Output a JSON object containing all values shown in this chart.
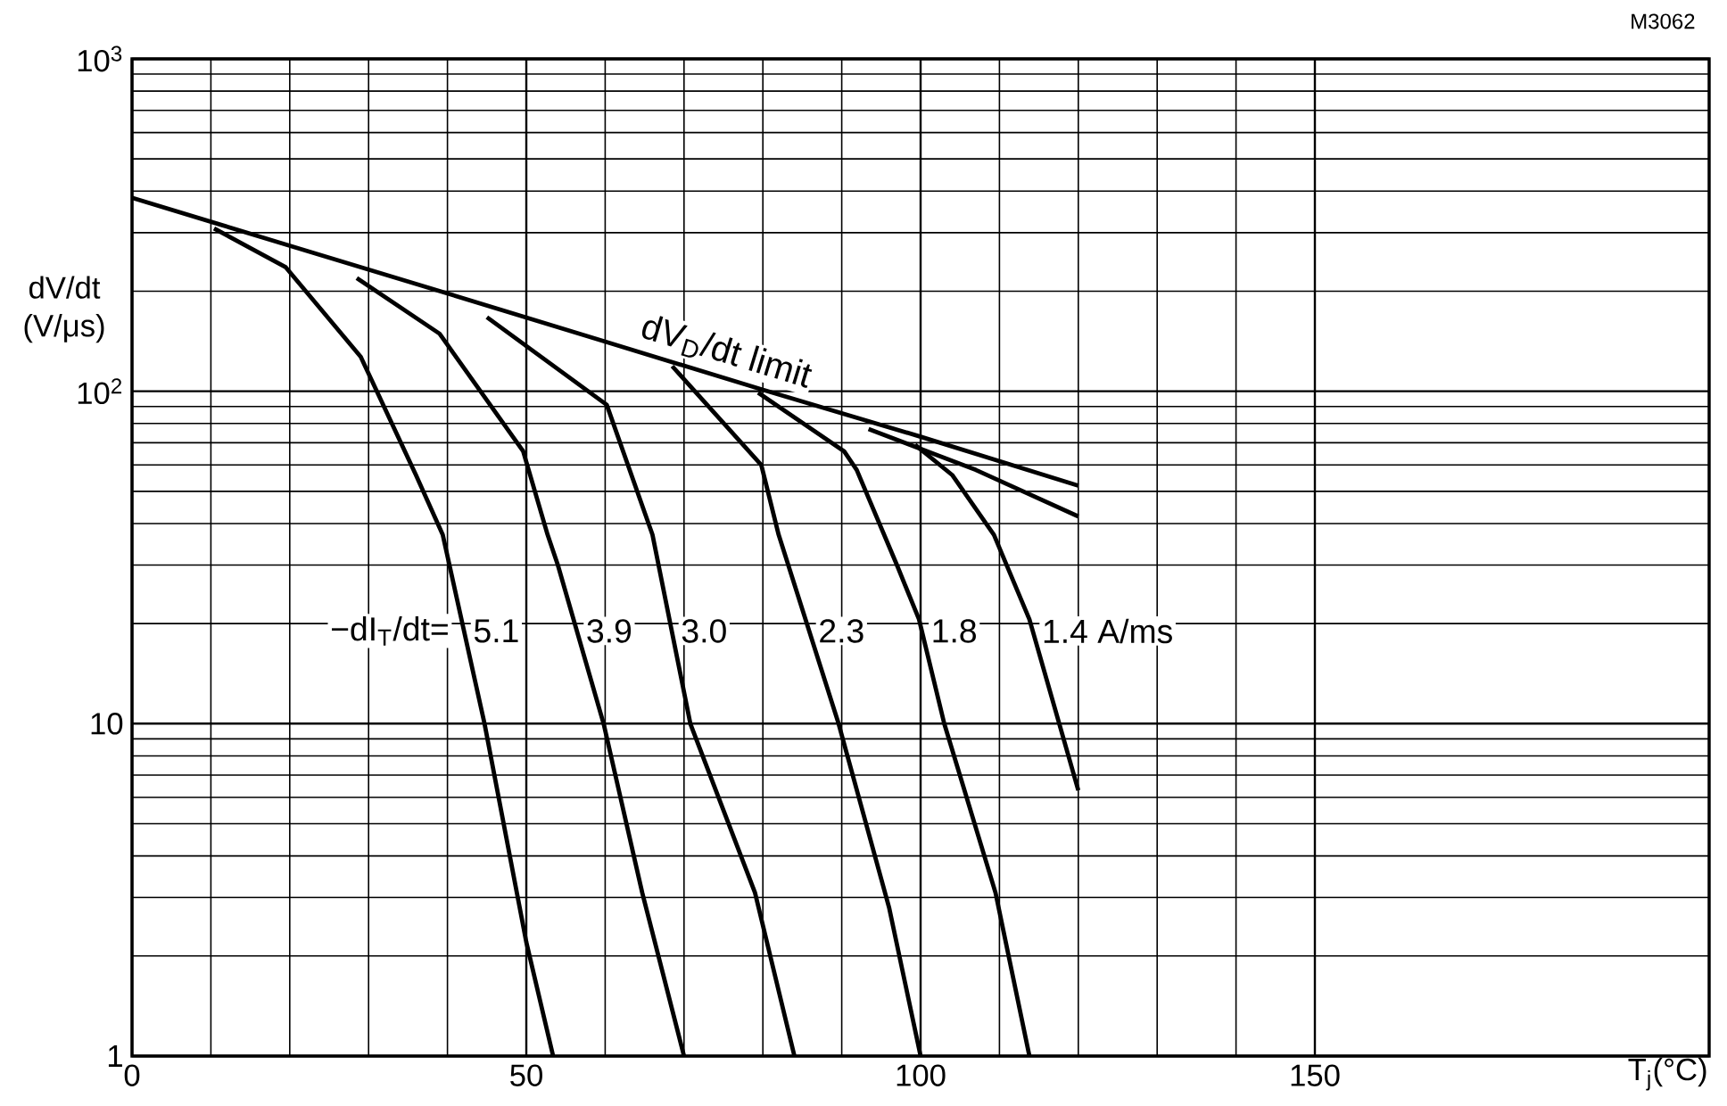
{
  "chart_data": {
    "type": "line",
    "xlabel": "T$_{j}$(°C)",
    "ylabel": "dV/dt (V/μs)",
    "xlim": [
      0,
      200
    ],
    "ylim": [
      1,
      1000
    ],
    "xticks": [
      0,
      50,
      100,
      150
    ],
    "yticks": [
      1,
      10,
      {
        "value": 100,
        "label": "10$^{2}$"
      },
      {
        "value": 1000,
        "label": "10$^{3}$"
      }
    ],
    "log": "y",
    "grid": true,
    "marker": "none",
    "line_style": "solid",
    "annotations": [
      "M3062",
      "−dI$_{T}$/dt="
    ],
    "series": [
      {
        "name": "dV$_{D}$/dt limit",
        "color": "#000000",
        "x": [
          0,
          20,
          40,
          60,
          80,
          100,
          120
        ],
        "values": [
          382,
          274,
          197,
          141,
          101,
          73,
          52
        ]
      },
      {
        "name": "5.1",
        "color": "#000000",
        "x": [
          10.4,
          19.5,
          29,
          36,
          39.4,
          44.7,
          50,
          53.4
        ],
        "values": [
          309,
          236,
          127,
          56,
          37,
          10,
          2.2,
          1
        ]
      },
      {
        "name": "3.9",
        "color": "#000000",
        "x": [
          28.5,
          39,
          49.6,
          52.7,
          54,
          59.8,
          64.7,
          70
        ],
        "values": [
          219,
          149,
          66,
          37,
          30,
          10,
          3.1,
          1
        ]
      },
      {
        "name": "3.0",
        "color": "#000000",
        "x": [
          45,
          60.2,
          66,
          70.8,
          79,
          84
        ],
        "values": [
          167,
          91,
          37,
          10,
          3.1,
          1
        ]
      },
      {
        "name": "2.3",
        "color": "#000000",
        "x": [
          68.5,
          79.8,
          82,
          89.6,
          96,
          100
        ],
        "values": [
          119,
          60,
          37,
          10,
          2.8,
          1
        ]
      },
      {
        "name": "1.8",
        "color": "#000000",
        "x": [
          79.4,
          90.3,
          91.9,
          97,
          99.8,
          103,
          109.5,
          113.8
        ],
        "values": [
          99,
          66,
          58,
          30,
          20.6,
          10,
          3.1,
          1
        ]
      },
      {
        "name": "1.4 A/ms",
        "color": "#000000",
        "x": [
          99.3,
          104,
          109.3,
          113.8,
          120
        ],
        "values": [
          69,
          56,
          37,
          20.6,
          6.3
        ]
      },
      {
        "color": "#000000",
        "x": [
          93.4,
          107,
          120
        ],
        "values": [
          77,
          58,
          42
        ]
      }
    ]
  }
}
